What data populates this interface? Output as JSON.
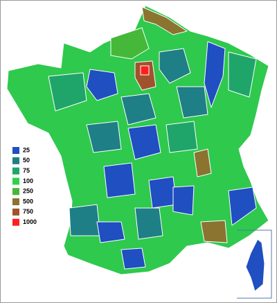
{
  "legend": {
    "items": [
      {
        "label": "25",
        "color": "#1f4fc0"
      },
      {
        "label": "50",
        "color": "#1f7f86"
      },
      {
        "label": "75",
        "color": "#1fa56a"
      },
      {
        "label": "100",
        "color": "#2ed24a"
      },
      {
        "label": "250",
        "color": "#45b83a"
      },
      {
        "label": "500",
        "color": "#8a7430"
      },
      {
        "label": "750",
        "color": "#a0522d"
      },
      {
        "label": "1000",
        "color": "#ff1e1e"
      }
    ]
  }
}
